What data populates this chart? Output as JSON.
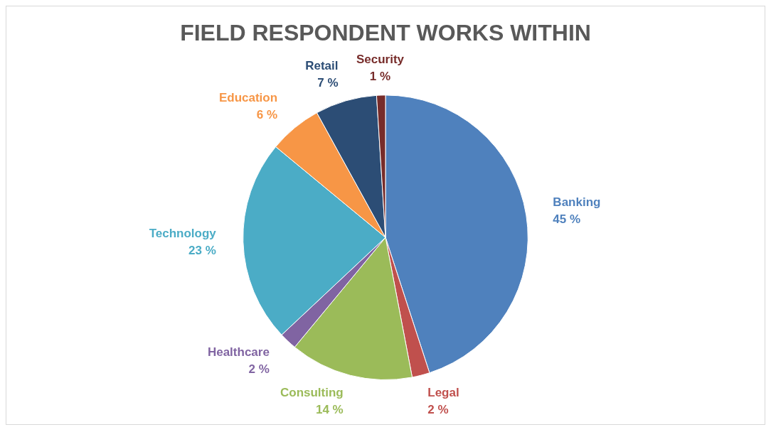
{
  "chart_data": {
    "type": "pie",
    "title": "FIELD RESPONDENT WORKS WITHIN",
    "categories": [
      "Banking",
      "Legal",
      "Consulting",
      "Healthcare",
      "Technology",
      "Education",
      "Retail",
      "Security"
    ],
    "values": [
      45,
      2,
      14,
      2,
      23,
      6,
      7,
      1
    ],
    "value_labels": [
      "45 %",
      "2 %",
      "14 %",
      "2 %",
      "23 %",
      "6 %",
      "7 %",
      "1 %"
    ],
    "colors": [
      "#4f81bd",
      "#c0504d",
      "#9bbb59",
      "#8064a2",
      "#4bacc6",
      "#f79646",
      "#2c4d75",
      "#772c2a"
    ],
    "legend": false
  }
}
